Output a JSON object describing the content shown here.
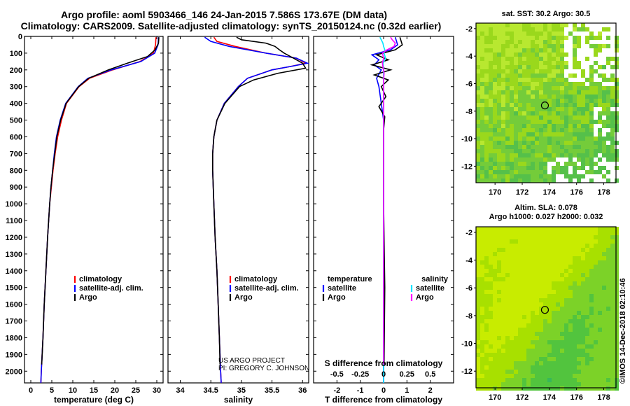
{
  "header": {
    "title_line1": "Argo profile: aoml 5903466_146 24-Jan-2015 7.586S 173.67E (DM data)",
    "title_line2": "Climatology: CARS2009. Satellite-adjusted climatology: synTS_20150124.nc (0.32d earlier)"
  },
  "colors": {
    "climatology": "#ff0000",
    "satellite": "#0000ff",
    "argo": "#000000",
    "sat_cyan": "#00e5ff",
    "argo_magenta": "#ff00ff",
    "map_fill": "#a0e000",
    "map_green": "#3cc83c",
    "land_white": "#ffffff"
  },
  "chart_data": [
    {
      "type": "line",
      "id": "temperature",
      "xlabel": "temperature (deg C)",
      "xlim": [
        -1.5,
        31.5
      ],
      "xticks": [
        0,
        5,
        10,
        15,
        20,
        25,
        30
      ],
      "ylim": [
        0,
        2070
      ],
      "yticks": [
        0,
        100,
        200,
        300,
        400,
        500,
        600,
        700,
        800,
        900,
        1000,
        1100,
        1200,
        1300,
        1400,
        1500,
        1600,
        1700,
        1800,
        1900,
        2000
      ],
      "legend": [
        "climatology",
        "satellite-adj. clim.",
        "Argo"
      ],
      "series": [
        {
          "name": "climatology",
          "color": "#ff0000",
          "depth": [
            5,
            50,
            100,
            150,
            200,
            250,
            300,
            400,
            500,
            600,
            700,
            800,
            900,
            1000,
            1200,
            1400,
            1600,
            1800,
            2000,
            2070
          ],
          "values": [
            29.8,
            29.7,
            29.2,
            26.0,
            19.5,
            14.0,
            11.5,
            8.5,
            7.3,
            6.4,
            5.8,
            5.3,
            4.9,
            4.5,
            4.0,
            3.6,
            3.2,
            2.9,
            2.5,
            2.4
          ]
        },
        {
          "name": "satellite-adj. clim.",
          "color": "#0000ff",
          "depth": [
            5,
            50,
            100,
            150,
            200,
            250,
            300,
            400,
            500,
            600,
            700,
            800,
            900,
            1000,
            1200,
            1400,
            1600,
            1800,
            2000,
            2070
          ],
          "values": [
            30.4,
            30.3,
            29.5,
            26.2,
            19.2,
            13.6,
            11.3,
            8.3,
            7.0,
            6.1,
            5.6,
            5.2,
            4.8,
            4.5,
            4.0,
            3.6,
            3.2,
            2.9,
            2.5,
            2.4
          ]
        },
        {
          "name": "Argo",
          "color": "#000000",
          "depth": [
            5,
            40,
            80,
            120,
            160,
            200,
            250,
            300,
            400,
            500,
            600,
            700,
            800,
            900,
            1000,
            1200,
            1400,
            1600,
            1800,
            1960
          ],
          "values": [
            30.5,
            30.4,
            29.6,
            27.8,
            23.0,
            18.5,
            13.8,
            11.4,
            8.4,
            7.1,
            6.2,
            5.7,
            5.2,
            4.8,
            4.5,
            4.0,
            3.6,
            3.2,
            2.9,
            2.6
          ]
        }
      ]
    },
    {
      "type": "line",
      "id": "salinity",
      "xlabel": "salinity",
      "xlim": [
        33.8,
        36.1
      ],
      "xticks": [
        34,
        34.5,
        35,
        35.5,
        36
      ],
      "xticklabels": [
        "34",
        "34.5",
        "35",
        "35.5",
        "36"
      ],
      "ylim": [
        0,
        2070
      ],
      "legend": [
        "climatology",
        "satellite-adj. clim.",
        "Argo"
      ],
      "footer_note": [
        "US ARGO PROJECT",
        "PI: GREGORY C. JOHNSON"
      ],
      "series": [
        {
          "name": "climatology",
          "color": "#ff0000",
          "depth": [
            5,
            30,
            60,
            100,
            130,
            160,
            180,
            200,
            250,
            300,
            400,
            500,
            600,
            700,
            800,
            1000,
            1200,
            1400,
            1600,
            1800,
            2000,
            2070
          ],
          "values": [
            34.55,
            34.6,
            34.9,
            35.4,
            35.9,
            36.05,
            35.8,
            35.5,
            35.1,
            34.95,
            34.72,
            34.6,
            34.55,
            34.53,
            34.53,
            34.55,
            34.57,
            34.6,
            34.62,
            34.64,
            34.66,
            34.67
          ]
        },
        {
          "name": "satellite-adj. clim.",
          "color": "#0000ff",
          "depth": [
            5,
            30,
            60,
            100,
            130,
            160,
            180,
            200,
            250,
            300,
            400,
            500,
            600,
            700,
            800,
            1000,
            1200,
            1400,
            1600,
            1800,
            2000,
            2070
          ],
          "values": [
            34.4,
            34.5,
            34.8,
            35.4,
            35.9,
            36.08,
            35.8,
            35.5,
            35.1,
            34.95,
            34.72,
            34.6,
            34.55,
            34.53,
            34.53,
            34.55,
            34.57,
            34.6,
            34.62,
            34.64,
            34.66,
            34.67
          ]
        },
        {
          "name": "Argo",
          "color": "#000000",
          "depth": [
            5,
            20,
            40,
            60,
            80,
            100,
            130,
            160,
            190,
            220,
            260,
            300,
            400,
            500,
            600,
            700,
            800,
            1000,
            1200,
            1400,
            1600,
            1800,
            1960
          ],
          "values": [
            34.92,
            35.0,
            35.4,
            35.55,
            35.62,
            35.7,
            35.85,
            36.0,
            36.05,
            35.6,
            35.2,
            34.97,
            34.73,
            34.6,
            34.55,
            34.53,
            34.53,
            34.55,
            34.57,
            34.6,
            34.62,
            34.64,
            34.65
          ]
        }
      ]
    },
    {
      "type": "line",
      "id": "difference",
      "xlabel": "T difference from climatology",
      "xlabel_top": "S difference from climatology",
      "xlim": [
        -3.0,
        3.0
      ],
      "xticks": [
        -2,
        -1,
        0,
        1,
        2
      ],
      "xticks_s": [
        -0.5,
        -0.25,
        0,
        0.25,
        0.5
      ],
      "xticklabels_s": [
        "-0.5",
        "-0.25",
        "0",
        "0.25",
        "0.5"
      ],
      "ylim": [
        0,
        2070
      ],
      "legend_temperature": {
        "title": "temperature",
        "items": [
          "satellite",
          "Argo"
        ]
      },
      "legend_salinity": {
        "title": "salinity",
        "items": [
          "satellite",
          "Argo"
        ]
      },
      "series": [
        {
          "name": "T satellite",
          "color": "#0000ff",
          "depth": [
            5,
            50,
            80,
            110,
            140,
            170,
            200,
            250,
            300,
            400,
            500,
            700,
            1000,
            1500,
            2000,
            2070
          ],
          "values": [
            0.5,
            0.6,
            0.3,
            -0.5,
            -0.2,
            -0.4,
            -0.1,
            -0.3,
            -0.2,
            -0.1,
            0.0,
            0.0,
            0.0,
            0.0,
            0.0,
            0.0
          ]
        },
        {
          "name": "T Argo",
          "color": "#000000",
          "depth": [
            5,
            50,
            80,
            110,
            140,
            170,
            200,
            230,
            260,
            300,
            360,
            420,
            480,
            560,
            700,
            1000,
            1500,
            1960
          ],
          "values": [
            0.7,
            0.8,
            0.5,
            -0.3,
            0.2,
            -0.5,
            0.3,
            -0.4,
            0.2,
            -0.1,
            0.1,
            -0.2,
            0.05,
            0.0,
            0.0,
            0.0,
            0.05,
            0.02
          ]
        },
        {
          "name": "S satellite",
          "color": "#00e5ff",
          "depth": [
            5,
            20,
            40,
            60,
            80,
            100,
            130,
            160,
            200,
            260,
            350,
            500,
            800,
            1200,
            2070
          ],
          "values": [
            -0.16,
            -0.1,
            -0.03,
            0.0,
            0.05,
            0.02,
            0.08,
            -0.02,
            0.0,
            0.0,
            0.0,
            0.0,
            0.0,
            0.0,
            0.0
          ]
        },
        {
          "name": "S Argo",
          "color": "#ff00ff",
          "depth": [
            5,
            20,
            40,
            60,
            80,
            100,
            130,
            160,
            190,
            220,
            260,
            300,
            400,
            1000,
            1500,
            1960
          ],
          "values": [
            0.3,
            0.37,
            0.5,
            0.45,
            0.15,
            -0.05,
            0.0,
            -0.05,
            -0.02,
            0.02,
            0.0,
            0.0,
            0.0,
            0.0,
            0.0,
            0.0
          ]
        }
      ]
    },
    {
      "type": "heatmap",
      "id": "sst_map",
      "title": "sat. SST: 30.2 Argo: 30.5",
      "xticks": [
        170,
        172,
        174,
        176,
        178
      ],
      "yticks": [
        -2,
        -4,
        -6,
        -8,
        -10,
        -12
      ],
      "xlim": [
        168.6,
        178.9
      ],
      "ylim": [
        -13.2,
        -1.6
      ],
      "marker": {
        "lon": 173.67,
        "lat": -7.586
      }
    },
    {
      "type": "heatmap",
      "id": "sla_map",
      "title_line1": "Altim. SLA: 0.078",
      "title_line2": "Argo h1000: 0.027 h2000: 0.032",
      "xticks": [
        170,
        172,
        174,
        176,
        178
      ],
      "yticks": [
        -2,
        -4,
        -6,
        -8,
        -10,
        -12
      ],
      "xlim": [
        168.6,
        178.9
      ],
      "ylim": [
        -13.2,
        -1.6
      ],
      "marker": {
        "lon": 173.67,
        "lat": -7.586
      }
    }
  ],
  "footer": {
    "credit": "©IMOS 14-Dec-2018 02:10:46"
  }
}
